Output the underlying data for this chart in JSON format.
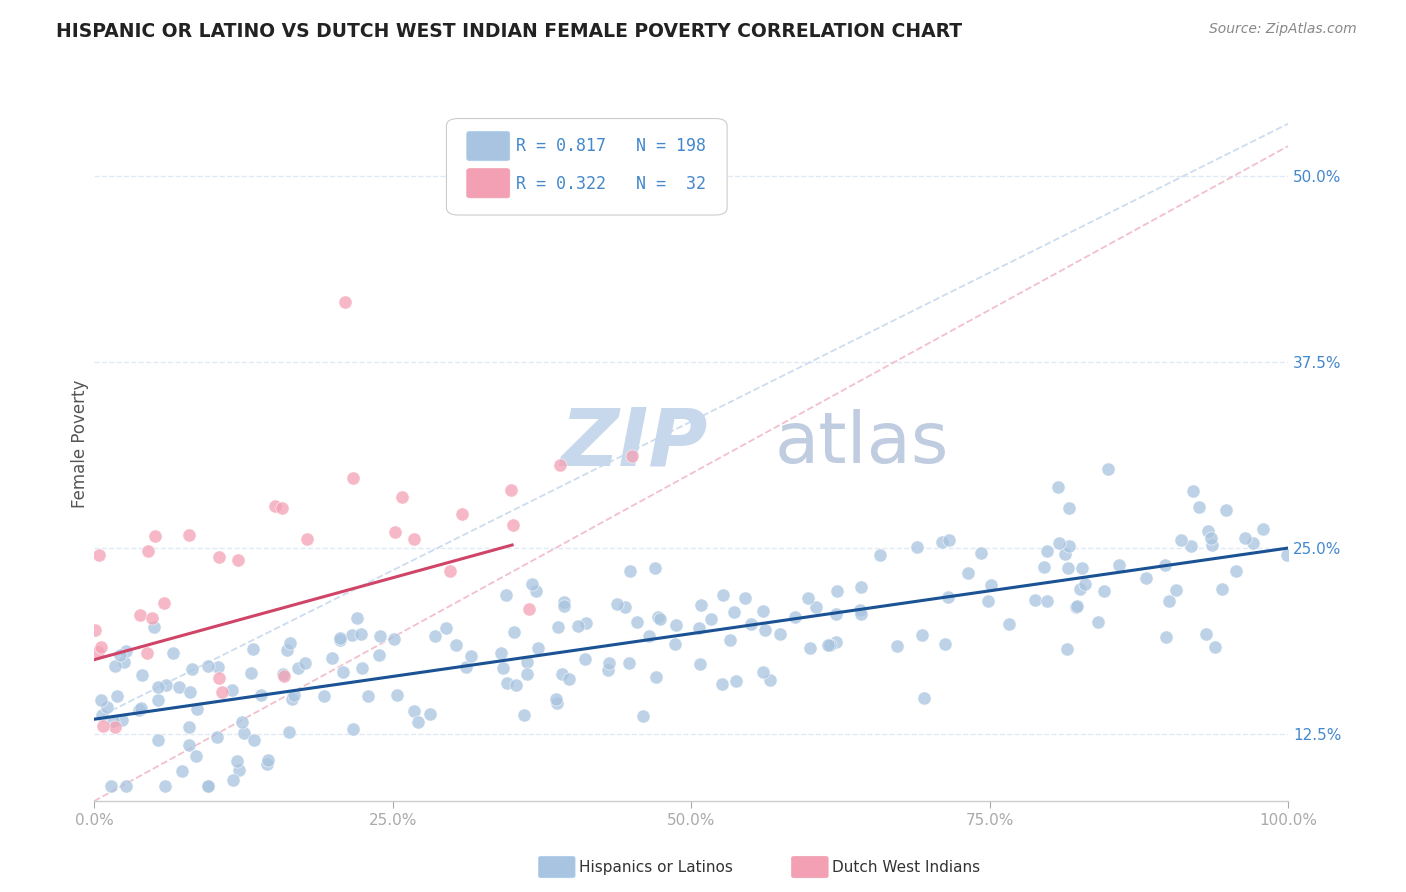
{
  "title": "HISPANIC OR LATINO VS DUTCH WEST INDIAN FEMALE POVERTY CORRELATION CHART",
  "source": "Source: ZipAtlas.com",
  "ylabel": "Female Poverty",
  "xlim": [
    0.0,
    1.0
  ],
  "ylim": [
    0.08,
    0.56
  ],
  "xticks": [
    0.0,
    0.25,
    0.5,
    0.75,
    1.0
  ],
  "xticklabels": [
    "0.0%",
    "25.0%",
    "50.0%",
    "75.0%",
    "100.0%"
  ],
  "ytick_positions": [
    0.125,
    0.25,
    0.375,
    0.5
  ],
  "yticklabels": [
    "12.5%",
    "25.0%",
    "37.5%",
    "50.0%"
  ],
  "blue_R": 0.817,
  "blue_N": 198,
  "pink_R": 0.322,
  "pink_N": 32,
  "blue_scatter_color": "#a8c4e0",
  "blue_line_color": "#1a5294",
  "pink_scatter_color": "#f4a0b4",
  "pink_line_color": "#d04468",
  "pink_dash_color": "#f0b0c0",
  "blue_dash_color": "#c0d4ec",
  "watermark_ZIP_color": "#c8d8ec",
  "watermark_atlas_color": "#c0cce0",
  "legend_label_blue": "Hispanics or Latinos",
  "legend_label_pink": "Dutch West Indians",
  "title_color": "#222222",
  "source_color": "#888888",
  "axis_label_color": "#555555",
  "tick_label_color": "#4488cc",
  "background_color": "#ffffff",
  "grid_color": "#dde8f4",
  "blue_seed": 12,
  "pink_seed": 99,
  "blue_intercept": 0.135,
  "blue_slope": 0.115,
  "pink_intercept": 0.175,
  "pink_slope": 0.22,
  "blue_dash_intercept": 0.135,
  "blue_dash_slope": 0.4,
  "pink_dash_intercept": 0.08,
  "pink_dash_slope": 0.44
}
